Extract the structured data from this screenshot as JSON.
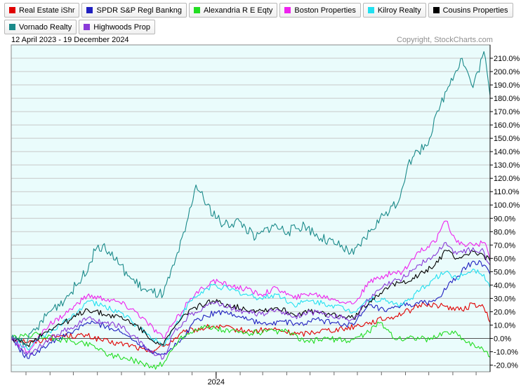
{
  "legend": [
    {
      "label": "Real Estate iShr",
      "color": "#e00000"
    },
    {
      "label": "SPDR S&P Regl Bankng",
      "color": "#2020c0"
    },
    {
      "label": "Alexandria R E Eqty",
      "color": "#22dd22"
    },
    {
      "label": "Boston Properties",
      "color": "#ee22ee"
    },
    {
      "label": "Kilroy Realty",
      "color": "#22e0f0"
    },
    {
      "label": "Cousins Properties",
      "color": "#000000"
    },
    {
      "label": "Vornado Realty",
      "color": "#1a8a8a"
    },
    {
      "label": "Highwoods Prop",
      "color": "#8a3ad8"
    }
  ],
  "header": {
    "date_range": "12 April 2023 - 19 December 2024",
    "copyright": "Copyright, StockCharts.com"
  },
  "chart_data": {
    "type": "line",
    "x_start": "2023-04-12",
    "x_end": "2024-12-19",
    "x_tick_labels": [
      {
        "label": "2024",
        "date": "2024-01-01"
      }
    ],
    "ylim": [
      -25,
      220
    ],
    "yticks": [
      -20,
      -10,
      0,
      10,
      20,
      30,
      40,
      50,
      60,
      70,
      80,
      90,
      100,
      110,
      120,
      130,
      140,
      150,
      160,
      170,
      180,
      190,
      200,
      210
    ],
    "ytick_labels": [
      "-20.0%",
      "-10.0%",
      "0.0%",
      "10.0%",
      "20.0%",
      "30.0%",
      "40.0%",
      "50.0%",
      "60.0%",
      "70.0%",
      "80.0%",
      "90.0%",
      "100.0%",
      "110.0%",
      "120.0%",
      "130.0%",
      "140.0%",
      "150.0%",
      "160.0%",
      "170.0%",
      "180.0%",
      "190.0%",
      "200.0%",
      "210.0%"
    ],
    "y_unit": "%",
    "grid": true,
    "background": "#eafcfc",
    "series": [
      {
        "name": "Real Estate iShr",
        "color": "#e00000",
        "points": [
          [
            "2023-04-12",
            0
          ],
          [
            "2023-05-10",
            -3
          ],
          [
            "2023-06-14",
            2
          ],
          [
            "2023-07-19",
            2
          ],
          [
            "2023-08-16",
            -3
          ],
          [
            "2023-09-13",
            -5
          ],
          [
            "2023-10-04",
            -10
          ],
          [
            "2023-10-25",
            -6
          ],
          [
            "2023-11-22",
            5
          ],
          [
            "2023-12-27",
            9
          ],
          [
            "2024-01-24",
            7
          ],
          [
            "2024-02-14",
            5
          ],
          [
            "2024-03-13",
            7
          ],
          [
            "2024-04-17",
            3
          ],
          [
            "2024-05-15",
            6
          ],
          [
            "2024-06-12",
            7
          ],
          [
            "2024-07-17",
            12
          ],
          [
            "2024-08-14",
            16
          ],
          [
            "2024-09-11",
            22
          ],
          [
            "2024-09-25",
            26
          ],
          [
            "2024-10-23",
            24
          ],
          [
            "2024-11-13",
            21
          ],
          [
            "2024-11-27",
            26
          ],
          [
            "2024-12-11",
            23
          ],
          [
            "2024-12-19",
            12
          ]
        ]
      },
      {
        "name": "SPDR S&P Regl Bankng",
        "color": "#2020c0",
        "points": [
          [
            "2023-04-12",
            0
          ],
          [
            "2023-05-03",
            -15
          ],
          [
            "2023-05-24",
            -6
          ],
          [
            "2023-06-28",
            4
          ],
          [
            "2023-07-19",
            12
          ],
          [
            "2023-08-09",
            10
          ],
          [
            "2023-08-30",
            5
          ],
          [
            "2023-09-20",
            -2
          ],
          [
            "2023-10-04",
            -8
          ],
          [
            "2023-10-25",
            -12
          ],
          [
            "2023-11-15",
            -3
          ],
          [
            "2023-12-06",
            14
          ],
          [
            "2024-01-03",
            20
          ],
          [
            "2024-01-24",
            18
          ],
          [
            "2024-02-14",
            14
          ],
          [
            "2024-03-06",
            10
          ],
          [
            "2024-03-27",
            13
          ],
          [
            "2024-04-17",
            10
          ],
          [
            "2024-05-08",
            14
          ],
          [
            "2024-05-29",
            12
          ],
          [
            "2024-06-26",
            10
          ],
          [
            "2024-07-17",
            25
          ],
          [
            "2024-08-07",
            20
          ],
          [
            "2024-08-28",
            25
          ],
          [
            "2024-09-18",
            26
          ],
          [
            "2024-10-09",
            28
          ],
          [
            "2024-11-06",
            46
          ],
          [
            "2024-11-27",
            58
          ],
          [
            "2024-12-11",
            55
          ],
          [
            "2024-12-19",
            48
          ]
        ]
      },
      {
        "name": "Alexandria R E Eqty",
        "color": "#22dd22",
        "points": [
          [
            "2023-04-12",
            0
          ],
          [
            "2023-05-10",
            3
          ],
          [
            "2023-06-07",
            0
          ],
          [
            "2023-06-28",
            -2
          ],
          [
            "2023-07-26",
            -5
          ],
          [
            "2023-08-16",
            -12
          ],
          [
            "2023-09-06",
            -15
          ],
          [
            "2023-09-27",
            -18
          ],
          [
            "2023-10-11",
            -22
          ],
          [
            "2023-10-25",
            -19
          ],
          [
            "2023-11-15",
            0
          ],
          [
            "2023-12-13",
            9
          ],
          [
            "2024-01-10",
            6
          ],
          [
            "2024-02-07",
            4
          ],
          [
            "2024-03-06",
            5
          ],
          [
            "2024-04-03",
            5
          ],
          [
            "2024-04-24",
            -3
          ],
          [
            "2024-05-22",
            0
          ],
          [
            "2024-06-19",
            -2
          ],
          [
            "2024-07-10",
            3
          ],
          [
            "2024-07-31",
            12
          ],
          [
            "2024-08-21",
            -1
          ],
          [
            "2024-09-11",
            1
          ],
          [
            "2024-10-02",
            -1
          ],
          [
            "2024-10-23",
            5
          ],
          [
            "2024-11-06",
            4
          ],
          [
            "2024-11-20",
            -3
          ],
          [
            "2024-12-04",
            -6
          ],
          [
            "2024-12-19",
            -14
          ]
        ]
      },
      {
        "name": "Boston Properties",
        "color": "#ee22ee",
        "points": [
          [
            "2023-04-12",
            0
          ],
          [
            "2023-05-03",
            -10
          ],
          [
            "2023-05-31",
            10
          ],
          [
            "2023-06-28",
            22
          ],
          [
            "2023-07-19",
            32
          ],
          [
            "2023-08-09",
            30
          ],
          [
            "2023-08-30",
            27
          ],
          [
            "2023-09-20",
            20
          ],
          [
            "2023-10-04",
            12
          ],
          [
            "2023-10-25",
            0
          ],
          [
            "2023-11-08",
            12
          ],
          [
            "2023-11-29",
            30
          ],
          [
            "2023-12-27",
            43
          ],
          [
            "2024-01-17",
            40
          ],
          [
            "2024-02-07",
            37
          ],
          [
            "2024-02-28",
            33
          ],
          [
            "2024-03-20",
            38
          ],
          [
            "2024-04-10",
            30
          ],
          [
            "2024-05-01",
            34
          ],
          [
            "2024-05-29",
            30
          ],
          [
            "2024-06-26",
            26
          ],
          [
            "2024-07-17",
            42
          ],
          [
            "2024-08-07",
            48
          ],
          [
            "2024-08-28",
            50
          ],
          [
            "2024-09-18",
            65
          ],
          [
            "2024-10-09",
            72
          ],
          [
            "2024-10-23",
            88
          ],
          [
            "2024-11-06",
            72
          ],
          [
            "2024-11-27",
            70
          ],
          [
            "2024-12-11",
            72
          ],
          [
            "2024-12-19",
            60
          ]
        ]
      },
      {
        "name": "Kilroy Realty",
        "color": "#22e0f0",
        "points": [
          [
            "2023-04-12",
            0
          ],
          [
            "2023-05-03",
            -8
          ],
          [
            "2023-05-31",
            5
          ],
          [
            "2023-06-28",
            15
          ],
          [
            "2023-07-19",
            28
          ],
          [
            "2023-08-09",
            24
          ],
          [
            "2023-08-30",
            20
          ],
          [
            "2023-09-20",
            10
          ],
          [
            "2023-10-04",
            3
          ],
          [
            "2023-10-25",
            -5
          ],
          [
            "2023-11-08",
            8
          ],
          [
            "2023-11-29",
            28
          ],
          [
            "2023-12-27",
            40
          ],
          [
            "2024-01-17",
            37
          ],
          [
            "2024-02-07",
            33
          ],
          [
            "2024-02-28",
            30
          ],
          [
            "2024-03-20",
            33
          ],
          [
            "2024-04-10",
            25
          ],
          [
            "2024-05-01",
            28
          ],
          [
            "2024-05-29",
            25
          ],
          [
            "2024-06-26",
            20
          ],
          [
            "2024-07-17",
            30
          ],
          [
            "2024-08-07",
            28
          ],
          [
            "2024-08-28",
            25
          ],
          [
            "2024-09-18",
            35
          ],
          [
            "2024-10-09",
            45
          ],
          [
            "2024-10-23",
            50
          ],
          [
            "2024-11-06",
            45
          ],
          [
            "2024-11-27",
            52
          ],
          [
            "2024-12-11",
            48
          ],
          [
            "2024-12-19",
            38
          ]
        ]
      },
      {
        "name": "Cousins Properties",
        "color": "#000000",
        "points": [
          [
            "2023-04-12",
            0
          ],
          [
            "2023-05-03",
            -5
          ],
          [
            "2023-05-31",
            7
          ],
          [
            "2023-06-28",
            14
          ],
          [
            "2023-07-19",
            22
          ],
          [
            "2023-08-09",
            18
          ],
          [
            "2023-08-30",
            16
          ],
          [
            "2023-09-20",
            10
          ],
          [
            "2023-10-04",
            2
          ],
          [
            "2023-10-25",
            -5
          ],
          [
            "2023-11-08",
            8
          ],
          [
            "2023-11-29",
            22
          ],
          [
            "2023-12-27",
            28
          ],
          [
            "2024-01-17",
            25
          ],
          [
            "2024-02-07",
            22
          ],
          [
            "2024-02-28",
            21
          ],
          [
            "2024-03-20",
            23
          ],
          [
            "2024-04-10",
            18
          ],
          [
            "2024-05-01",
            20
          ],
          [
            "2024-05-29",
            18
          ],
          [
            "2024-06-26",
            15
          ],
          [
            "2024-07-17",
            28
          ],
          [
            "2024-08-07",
            38
          ],
          [
            "2024-08-28",
            42
          ],
          [
            "2024-09-18",
            47
          ],
          [
            "2024-10-09",
            55
          ],
          [
            "2024-10-23",
            66
          ],
          [
            "2024-11-06",
            60
          ],
          [
            "2024-11-27",
            65
          ],
          [
            "2024-12-11",
            62
          ],
          [
            "2024-12-19",
            58
          ]
        ]
      },
      {
        "name": "Vornado Realty",
        "color": "#1a8a8a",
        "points": [
          [
            "2023-04-12",
            0
          ],
          [
            "2023-05-03",
            -2
          ],
          [
            "2023-05-31",
            20
          ],
          [
            "2023-06-21",
            30
          ],
          [
            "2023-07-12",
            45
          ],
          [
            "2023-08-02",
            70
          ],
          [
            "2023-08-16",
            65
          ],
          [
            "2023-08-30",
            55
          ],
          [
            "2023-09-13",
            45
          ],
          [
            "2023-10-04",
            35
          ],
          [
            "2023-10-25",
            33
          ],
          [
            "2023-11-08",
            55
          ],
          [
            "2023-11-22",
            80
          ],
          [
            "2023-12-06",
            115
          ],
          [
            "2023-12-20",
            100
          ],
          [
            "2024-01-10",
            85
          ],
          [
            "2024-01-31",
            88
          ],
          [
            "2024-02-21",
            75
          ],
          [
            "2024-03-13",
            85
          ],
          [
            "2024-04-03",
            80
          ],
          [
            "2024-04-24",
            85
          ],
          [
            "2024-05-15",
            75
          ],
          [
            "2024-06-05",
            70
          ],
          [
            "2024-06-26",
            63
          ],
          [
            "2024-07-17",
            80
          ],
          [
            "2024-08-07",
            95
          ],
          [
            "2024-08-21",
            100
          ],
          [
            "2024-09-04",
            130
          ],
          [
            "2024-09-18",
            140
          ],
          [
            "2024-10-02",
            150
          ],
          [
            "2024-10-16",
            175
          ],
          [
            "2024-10-30",
            195
          ],
          [
            "2024-11-13",
            210
          ],
          [
            "2024-11-27",
            188
          ],
          [
            "2024-12-11",
            215
          ],
          [
            "2024-12-19",
            182
          ]
        ]
      },
      {
        "name": "Highwoods Prop",
        "color": "#8a3ad8",
        "points": [
          [
            "2023-04-12",
            0
          ],
          [
            "2023-05-03",
            -12
          ],
          [
            "2023-05-31",
            0
          ],
          [
            "2023-06-28",
            8
          ],
          [
            "2023-07-19",
            15
          ],
          [
            "2023-08-09",
            12
          ],
          [
            "2023-08-30",
            10
          ],
          [
            "2023-09-20",
            0
          ],
          [
            "2023-10-04",
            -8
          ],
          [
            "2023-10-25",
            -15
          ],
          [
            "2023-11-08",
            5
          ],
          [
            "2023-11-29",
            18
          ],
          [
            "2023-12-27",
            27
          ],
          [
            "2024-01-17",
            24
          ],
          [
            "2024-02-07",
            20
          ],
          [
            "2024-02-28",
            18
          ],
          [
            "2024-03-20",
            22
          ],
          [
            "2024-04-10",
            16
          ],
          [
            "2024-05-01",
            20
          ],
          [
            "2024-05-29",
            17
          ],
          [
            "2024-06-26",
            14
          ],
          [
            "2024-07-17",
            30
          ],
          [
            "2024-08-07",
            40
          ],
          [
            "2024-08-28",
            45
          ],
          [
            "2024-09-18",
            55
          ],
          [
            "2024-10-09",
            62
          ],
          [
            "2024-10-23",
            72
          ],
          [
            "2024-11-06",
            63
          ],
          [
            "2024-11-27",
            68
          ],
          [
            "2024-12-11",
            65
          ],
          [
            "2024-12-19",
            55
          ]
        ]
      }
    ]
  }
}
